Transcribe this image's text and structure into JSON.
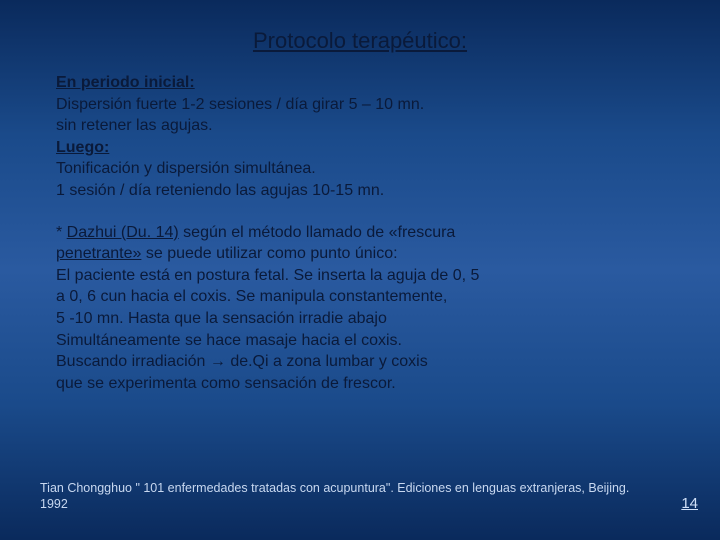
{
  "slide": {
    "title": "Protocolo terapéutico:",
    "section1": {
      "heading1": "En periodo inicial:",
      "line1": "Dispersión fuerte 1-2 sesiones / día girar 5 – 10 mn.",
      "line2": "sin retener las agujas.",
      "heading2": "Luego:",
      "line3": "Tonificación y dispersión simultánea.",
      "line4": "1 sesión / día reteniendo las agujas 10-15 mn."
    },
    "section2": {
      "lead_star": "* ",
      "lead_bold": "Dazhui (Du. 14)",
      "lead_tail": " según el método llamado de «frescura",
      "line2a": "penetrante»",
      "line2b": " se puede utilizar como punto único:",
      "line3": "El paciente está en postura fetal. Se inserta la aguja de 0, 5",
      "line4": "a 0, 6 cun hacia el coxis. Se manipula constantemente,",
      "line5": "5 -10 mn. Hasta que la sensación irradie abajo",
      "line6": "Simultáneamente se hace masaje hacia el coxis.",
      "line7": "Buscando irradiación → de.Qi a zona lumbar y coxis",
      "line8": "que se experimenta como sensación de frescor."
    },
    "footnote": "Tian Chongghuo \" 101 enfermedades tratadas con acupuntura\". Ediciones en lenguas extranjeras, Beijing. 1992",
    "page_number": "14"
  },
  "colors": {
    "bg_top": "#0a2a5c",
    "bg_mid": "#2a5aa0",
    "text_dark": "#0a1a3a",
    "text_light": "#c8d8f0"
  },
  "typography": {
    "title_fontsize": 22,
    "body_fontsize": 16,
    "footnote_fontsize": 12.5
  }
}
